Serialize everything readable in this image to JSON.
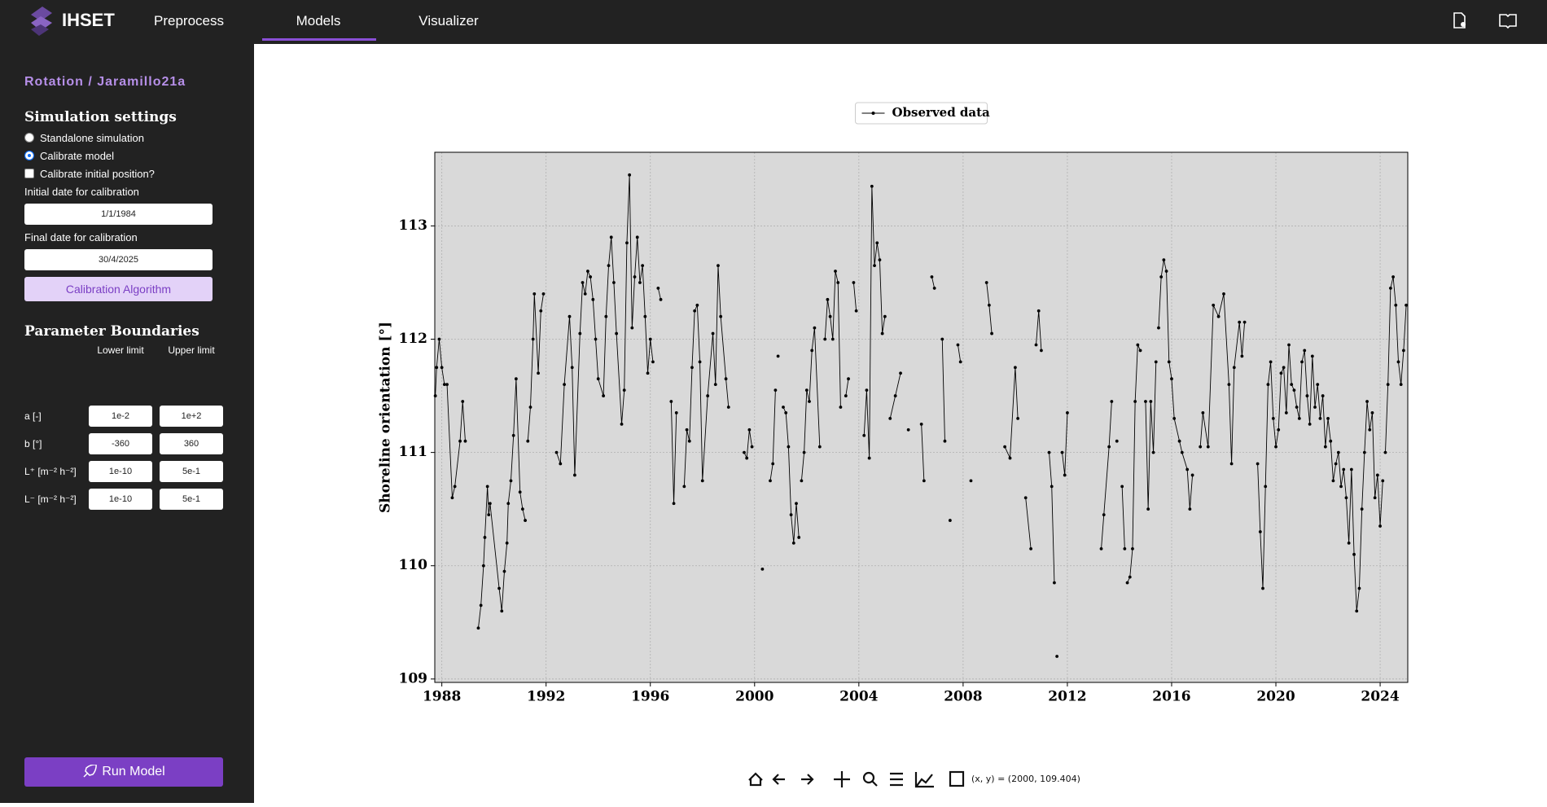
{
  "app": {
    "logo": "IHSET",
    "nav": [
      "Preprocess",
      "Models",
      "Visualizer"
    ]
  },
  "sidebar": {
    "heading": "Rotation / Jaramillo21a",
    "simulation_title": "Simulation settings",
    "options": [
      "Standalone simulation",
      "Calibrate model",
      "Calibrate initial position?"
    ],
    "initial_label": "Initial date for calibration",
    "initial_date": "1/1/1984",
    "final_label": "Final date for calibration",
    "final_date": "30/4/2025",
    "algorithm_button": "Calibration Algorithm",
    "boundaries_title": "Parameter Boundaries",
    "columns": [
      "Lower limit",
      "Upper limit"
    ],
    "parameters": [
      {
        "name": "a [-]",
        "lower": "1e-2",
        "upper": "1e+2"
      },
      {
        "name": "b [°]",
        "lower": "-360",
        "upper": "360"
      },
      {
        "name": "L⁺ [m⁻² h⁻²]",
        "lower": "1e-10",
        "upper": "5e-1"
      },
      {
        "name": "L⁻ [m⁻² h⁻²]",
        "lower": "1e-10",
        "upper": "5e-1"
      }
    ],
    "run_button": "Run Model"
  },
  "toolbar": {
    "coordinates": "(x, y) = (2000, 109.404)"
  },
  "chart_data": {
    "type": "line",
    "y_label": "Shoreline orientation [°]",
    "legend": "top",
    "grid": true,
    "xlim": [
      1987.73,
      2025.06
    ],
    "xticks": [
      1988,
      1992,
      1996,
      2000,
      2004,
      2008,
      2012,
      2016,
      2020,
      2024
    ],
    "ylim": [
      108.97,
      113.65
    ],
    "yticks": [
      109,
      110,
      111,
      112,
      113
    ],
    "series": [
      {
        "name": "Observed data",
        "color": "#000000",
        "x": [
          1987.75,
          1987.8,
          1987.9,
          1988.0,
          1988.1,
          1988.2,
          1988.4,
          1988.5,
          1988.7,
          1988.8,
          1988.9,
          null,
          1989.4,
          1989.5,
          1989.6,
          1989.65,
          1989.75,
          1989.8,
          1989.85,
          1990.2,
          1990.3,
          1990.4,
          1990.5,
          1990.55,
          1990.65,
          1990.75,
          1990.85,
          1991.0,
          1991.1,
          1991.2,
          null,
          1991.3,
          1991.4,
          1991.5,
          1991.55,
          1991.7,
          1991.8,
          1991.9,
          null,
          1992.4,
          1992.55,
          1992.7,
          1992.9,
          1993.0,
          1993.1,
          1993.3,
          1993.4,
          1993.5,
          1993.6,
          1993.7,
          1993.8,
          1993.9,
          1994.0,
          1994.2,
          1994.3,
          1994.4,
          1994.5,
          1994.6,
          1994.7,
          1994.9,
          1995.0,
          1995.1,
          1995.2,
          1995.3,
          1995.4,
          1995.5,
          1995.6,
          1995.7,
          1995.8,
          1995.9,
          1996.0,
          1996.1,
          null,
          1996.3,
          1996.4,
          null,
          1996.8,
          1996.9,
          1997.0,
          null,
          1997.3,
          1997.4,
          1997.5,
          1997.6,
          1997.7,
          1997.8,
          1997.9,
          1998.0,
          1998.2,
          1998.4,
          1998.5,
          1998.6,
          1998.7,
          1998.9,
          1999.0,
          null,
          1999.6,
          1999.7,
          1999.8,
          1999.9,
          null,
          2000.3,
          null,
          2000.6,
          2000.7,
          2000.8,
          null,
          2000.9,
          null,
          2001.1,
          2001.2,
          2001.3,
          2001.4,
          2001.5,
          2001.6,
          2001.7,
          null,
          2001.8,
          2001.9,
          2002.0,
          2002.1,
          2002.2,
          2002.3,
          2002.5,
          null,
          2002.7,
          2002.8,
          2002.9,
          2003.0,
          2003.1,
          2003.2,
          2003.3,
          null,
          2003.5,
          2003.6,
          null,
          2003.8,
          2003.9,
          null,
          2004.2,
          2004.3,
          2004.4,
          2004.5,
          2004.6,
          2004.7,
          2004.8,
          2004.9,
          2005.0,
          null,
          2005.2,
          2005.4,
          2005.6,
          null,
          2005.9,
          null,
          2006.4,
          2006.5,
          null,
          2006.8,
          2006.9,
          null,
          2007.2,
          2007.3,
          null,
          2007.5,
          null,
          2007.8,
          2007.9,
          null,
          2008.3,
          null,
          2008.9,
          2009.0,
          2009.1,
          null,
          2009.6,
          2009.8,
          2010.0,
          2010.1,
          null,
          2010.4,
          2010.6,
          null,
          2010.8,
          2010.9,
          2011.0,
          null,
          2011.3,
          2011.4,
          2011.5,
          null,
          2011.6,
          null,
          2011.8,
          2011.9,
          2012.0,
          null,
          2013.3,
          2013.4,
          2013.6,
          2013.7,
          null,
          2013.9,
          null,
          2014.1,
          2014.2,
          null,
          2014.3,
          2014.4,
          2014.5,
          2014.6,
          2014.7,
          2014.8,
          null,
          2015.0,
          2015.1,
          2015.2,
          2015.3,
          2015.4,
          null,
          2015.5,
          2015.6,
          2015.7,
          2015.8,
          2015.9,
          2016.0,
          2016.1,
          2016.3,
          2016.4,
          2016.6,
          2016.7,
          2016.8,
          null,
          2017.1,
          2017.2,
          2017.4,
          2017.6,
          2017.8,
          2018.0,
          2018.2,
          2018.3,
          2018.4,
          2018.6,
          2018.7,
          2018.8,
          null,
          2019.3,
          2019.4,
          2019.5,
          2019.6,
          2019.7,
          2019.8,
          2019.9,
          2020.0,
          2020.1,
          2020.2,
          2020.3,
          2020.4,
          2020.5,
          2020.6,
          2020.7,
          2020.8,
          2020.9,
          2021.0,
          2021.1,
          2021.2,
          2021.3,
          2021.4,
          2021.5,
          2021.6,
          2021.7,
          2021.8,
          2021.9,
          2022.0,
          2022.1,
          2022.2,
          2022.3,
          2022.4,
          2022.5,
          2022.6,
          2022.7,
          2022.8,
          2022.9,
          2023.0,
          2023.1,
          2023.2,
          2023.3,
          2023.4,
          2023.5,
          2023.6,
          2023.7,
          2023.8,
          2023.9,
          2024.0,
          2024.1,
          null,
          2024.2,
          2024.3,
          2024.4,
          2024.5,
          2024.6,
          2024.7,
          2024.8,
          2024.9,
          2025.0
        ],
        "values": [
          111.5,
          111.75,
          112.0,
          111.75,
          111.6,
          111.6,
          110.6,
          110.7,
          111.1,
          111.45,
          111.1,
          null,
          109.45,
          109.65,
          110.0,
          110.25,
          110.7,
          110.45,
          110.55,
          109.8,
          109.6,
          109.95,
          110.2,
          110.55,
          110.75,
          111.15,
          111.65,
          110.65,
          110.5,
          110.4,
          null,
          111.1,
          111.4,
          112.0,
          112.4,
          111.7,
          112.25,
          112.4,
          null,
          111.0,
          110.9,
          111.6,
          112.2,
          111.75,
          110.8,
          112.05,
          112.5,
          112.4,
          112.6,
          112.55,
          112.35,
          112.0,
          111.65,
          111.5,
          112.2,
          112.65,
          112.9,
          112.5,
          112.05,
          111.25,
          111.55,
          112.85,
          113.45,
          112.1,
          112.55,
          112.9,
          112.5,
          112.65,
          112.2,
          111.7,
          112.0,
          111.8,
          null,
          112.45,
          112.35,
          null,
          111.45,
          110.55,
          111.35,
          null,
          110.7,
          111.2,
          111.1,
          111.75,
          112.25,
          112.3,
          111.8,
          110.75,
          111.5,
          112.05,
          111.6,
          112.65,
          112.2,
          111.65,
          111.4,
          null,
          111.0,
          110.95,
          111.2,
          111.05,
          null,
          109.97,
          null,
          110.75,
          110.9,
          111.55,
          null,
          111.85,
          null,
          111.4,
          111.35,
          111.05,
          110.45,
          110.2,
          110.55,
          110.25,
          null,
          110.75,
          111.0,
          111.55,
          111.45,
          111.9,
          112.1,
          111.05,
          null,
          112.0,
          112.35,
          112.2,
          112.0,
          112.6,
          112.5,
          111.4,
          null,
          111.5,
          111.65,
          null,
          112.5,
          112.25,
          null,
          111.15,
          111.55,
          110.95,
          113.35,
          112.65,
          112.85,
          112.7,
          112.05,
          112.2,
          null,
          111.3,
          111.5,
          111.7,
          null,
          111.2,
          null,
          111.25,
          110.75,
          null,
          112.55,
          112.45,
          null,
          112.0,
          111.1,
          null,
          110.4,
          null,
          111.95,
          111.8,
          null,
          110.75,
          null,
          112.5,
          112.3,
          112.05,
          null,
          111.05,
          110.95,
          111.75,
          111.3,
          null,
          110.6,
          110.15,
          null,
          111.95,
          112.25,
          111.9,
          null,
          111.0,
          110.7,
          109.85,
          null,
          109.2,
          null,
          111.0,
          110.8,
          111.35,
          null,
          110.15,
          110.45,
          111.05,
          111.45,
          null,
          111.1,
          null,
          110.7,
          110.15,
          null,
          109.85,
          109.9,
          110.15,
          111.45,
          111.95,
          111.9,
          null,
          111.45,
          110.5,
          111.45,
          111.0,
          111.8,
          null,
          112.1,
          112.55,
          112.7,
          112.6,
          111.8,
          111.65,
          111.3,
          111.1,
          111.0,
          110.85,
          110.5,
          110.8,
          null,
          111.05,
          111.35,
          111.05,
          112.3,
          112.2,
          112.4,
          111.6,
          110.9,
          111.75,
          112.15,
          111.85,
          112.15,
          null,
          110.9,
          110.3,
          109.8,
          110.7,
          111.6,
          111.8,
          111.3,
          111.05,
          111.2,
          111.7,
          111.75,
          111.35,
          111.95,
          111.6,
          111.55,
          111.4,
          111.3,
          111.8,
          111.9,
          111.5,
          111.25,
          111.85,
          111.4,
          111.6,
          111.3,
          111.5,
          111.05,
          111.3,
          111.1,
          110.75,
          110.9,
          111.0,
          110.7,
          110.85,
          110.6,
          110.2,
          110.85,
          110.1,
          109.6,
          109.8,
          110.5,
          111.0,
          111.45,
          111.2,
          111.35,
          110.6,
          110.8,
          110.35,
          110.75,
          null,
          111.0,
          111.6,
          112.45,
          112.55,
          112.3,
          111.8,
          111.6,
          111.9,
          112.3
        ]
      }
    ]
  }
}
